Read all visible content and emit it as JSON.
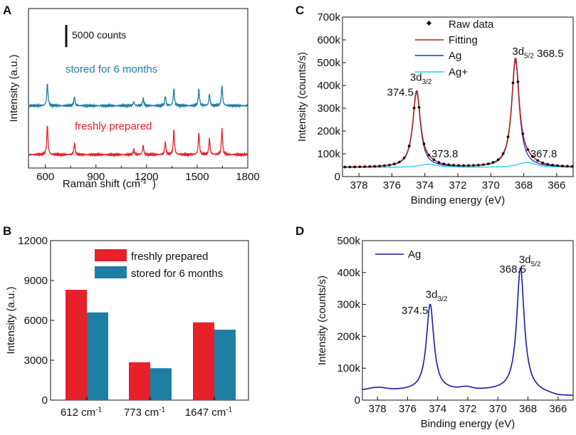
{
  "panels": {
    "A": {
      "letter": "A"
    },
    "B": {
      "letter": "B"
    },
    "C": {
      "letter": "C"
    },
    "D": {
      "letter": "D"
    }
  },
  "colors": {
    "fresh": "#e8202a",
    "stored": "#1e7ea4",
    "fitting": "#b22222",
    "ag": "#1f2fd0",
    "agplus": "#22cde6",
    "raw": "#111111",
    "d_line": "#1a1aa8"
  },
  "chart_data": [
    {
      "panel": "A",
      "type": "line",
      "title": "",
      "xlabel": "Raman shift (cm",
      "xlabel_sup": "-1",
      "xlabel_end": ")",
      "ylabel": "Intensity (a.u.)",
      "xlim": [
        500,
        1800
      ],
      "xticks": [
        600,
        900,
        1200,
        1500,
        1800
      ],
      "scalebar_label": "5000 counts",
      "scalebar_counts": 5000,
      "peaks_cm1": [
        612,
        773,
        1124,
        1180,
        1311,
        1362,
        1510,
        1573,
        1647
      ],
      "series": [
        {
          "name": "stored for 6 months",
          "key": "stored",
          "offset_counts": 14000,
          "peak_heights_counts": [
            5200,
            2100,
            900,
            1700,
            2200,
            3800,
            3700,
            2600,
            4700
          ]
        },
        {
          "name": "freshly prepared",
          "key": "fresh",
          "offset_counts": 3000,
          "peak_heights_counts": [
            6800,
            2600,
            1200,
            2100,
            2900,
            5700,
            5100,
            3600,
            5800
          ]
        }
      ]
    },
    {
      "panel": "B",
      "type": "bar",
      "xlabel": "",
      "ylabel": "Intensity (a.u.)",
      "ylim": [
        0,
        12000
      ],
      "yticks": [
        0,
        3000,
        6000,
        9000,
        12000
      ],
      "categories": [
        {
          "value": "612 cm",
          "sup": "-1"
        },
        {
          "value": "773 cm",
          "sup": "-1"
        },
        {
          "value": "1647 cm",
          "sup": "-1"
        }
      ],
      "series": [
        {
          "name": "freshly prepared",
          "key": "fresh",
          "values": [
            8300,
            2850,
            5850
          ]
        },
        {
          "name": "stored for 6 months",
          "key": "stored",
          "values": [
            6600,
            2400,
            5300
          ]
        }
      ],
      "legend": "top-right"
    },
    {
      "panel": "C",
      "type": "line",
      "xlabel": "Binding energy (eV)",
      "ylabel": "Intensity (counts/s)",
      "xlim": [
        379,
        365
      ],
      "xticks": [
        378,
        376,
        374,
        372,
        370,
        368,
        366
      ],
      "ylim": [
        0,
        700000
      ],
      "yticks": [
        0,
        100000,
        200000,
        300000,
        400000,
        500000,
        600000,
        700000
      ],
      "ytick_labels": [
        "0",
        "100k",
        "200k",
        "300k",
        "400k",
        "500k",
        "600k",
        "700k"
      ],
      "legend": [
        "Raw data",
        "Fitting",
        "Ag",
        "Ag+"
      ],
      "background_counts": 40000,
      "components": [
        {
          "name": "Ag 3d3/2",
          "key": "ag",
          "center_ev": 374.5,
          "height": 330000,
          "fwhm": 0.55
        },
        {
          "name": "Ag 3d5/2",
          "key": "ag",
          "center_ev": 368.5,
          "height": 470000,
          "fwhm": 0.55
        },
        {
          "name": "Ag+ 3d3/2",
          "key": "agplus",
          "center_ev": 373.8,
          "height": 14000,
          "fwhm": 1.3
        },
        {
          "name": "Ag+ 3d5/2",
          "key": "agplus",
          "center_ev": 367.8,
          "height": 22000,
          "fwhm": 1.3
        }
      ],
      "annotations": [
        {
          "text": "3d",
          "sub": "3/2",
          "at_ev": 374.9,
          "at_y": 420000
        },
        {
          "text": "374.5",
          "at_ev": 376.3,
          "at_y": 355000
        },
        {
          "text": "3d",
          "sub": "5/2",
          "at_ev": 368.7,
          "at_y": 535000
        },
        {
          "text": "368.5",
          "at_ev": 367.2,
          "at_y": 525000
        },
        {
          "text": "373.8",
          "at_ev": 373.6,
          "at_y": 85000
        },
        {
          "text": "367.8",
          "at_ev": 367.6,
          "at_y": 85000
        }
      ]
    },
    {
      "panel": "D",
      "type": "line",
      "xlabel": "Binding energy (eV)",
      "ylabel": "Intensity (counts/s)",
      "xlim": [
        379,
        365
      ],
      "xticks": [
        378,
        376,
        374,
        372,
        370,
        368,
        366
      ],
      "ylim": [
        0,
        500000
      ],
      "yticks": [
        0,
        100000,
        200000,
        300000,
        400000,
        500000
      ],
      "ytick_labels": [
        "0",
        "100k",
        "200k",
        "300k",
        "400k",
        "500k"
      ],
      "legend": [
        "Ag"
      ],
      "background_counts": 30000,
      "components": [
        {
          "name": "Ag 3d3/2",
          "center_ev": 374.5,
          "height": 270000,
          "fwhm": 0.6
        },
        {
          "name": "Ag 3d5/2",
          "center_ev": 368.5,
          "height": 385000,
          "fwhm": 0.6
        }
      ],
      "annotations": [
        {
          "text": "3d",
          "sub": "3/2",
          "at_ev": 374.8,
          "at_y": 320000
        },
        {
          "text": "374.5",
          "at_ev": 376.4,
          "at_y": 270000
        },
        {
          "text": "3d",
          "sub": "5/2",
          "at_ev": 368.6,
          "at_y": 430000
        },
        {
          "text": "368.5",
          "at_ev": 369.9,
          "at_y": 400000
        }
      ]
    }
  ]
}
